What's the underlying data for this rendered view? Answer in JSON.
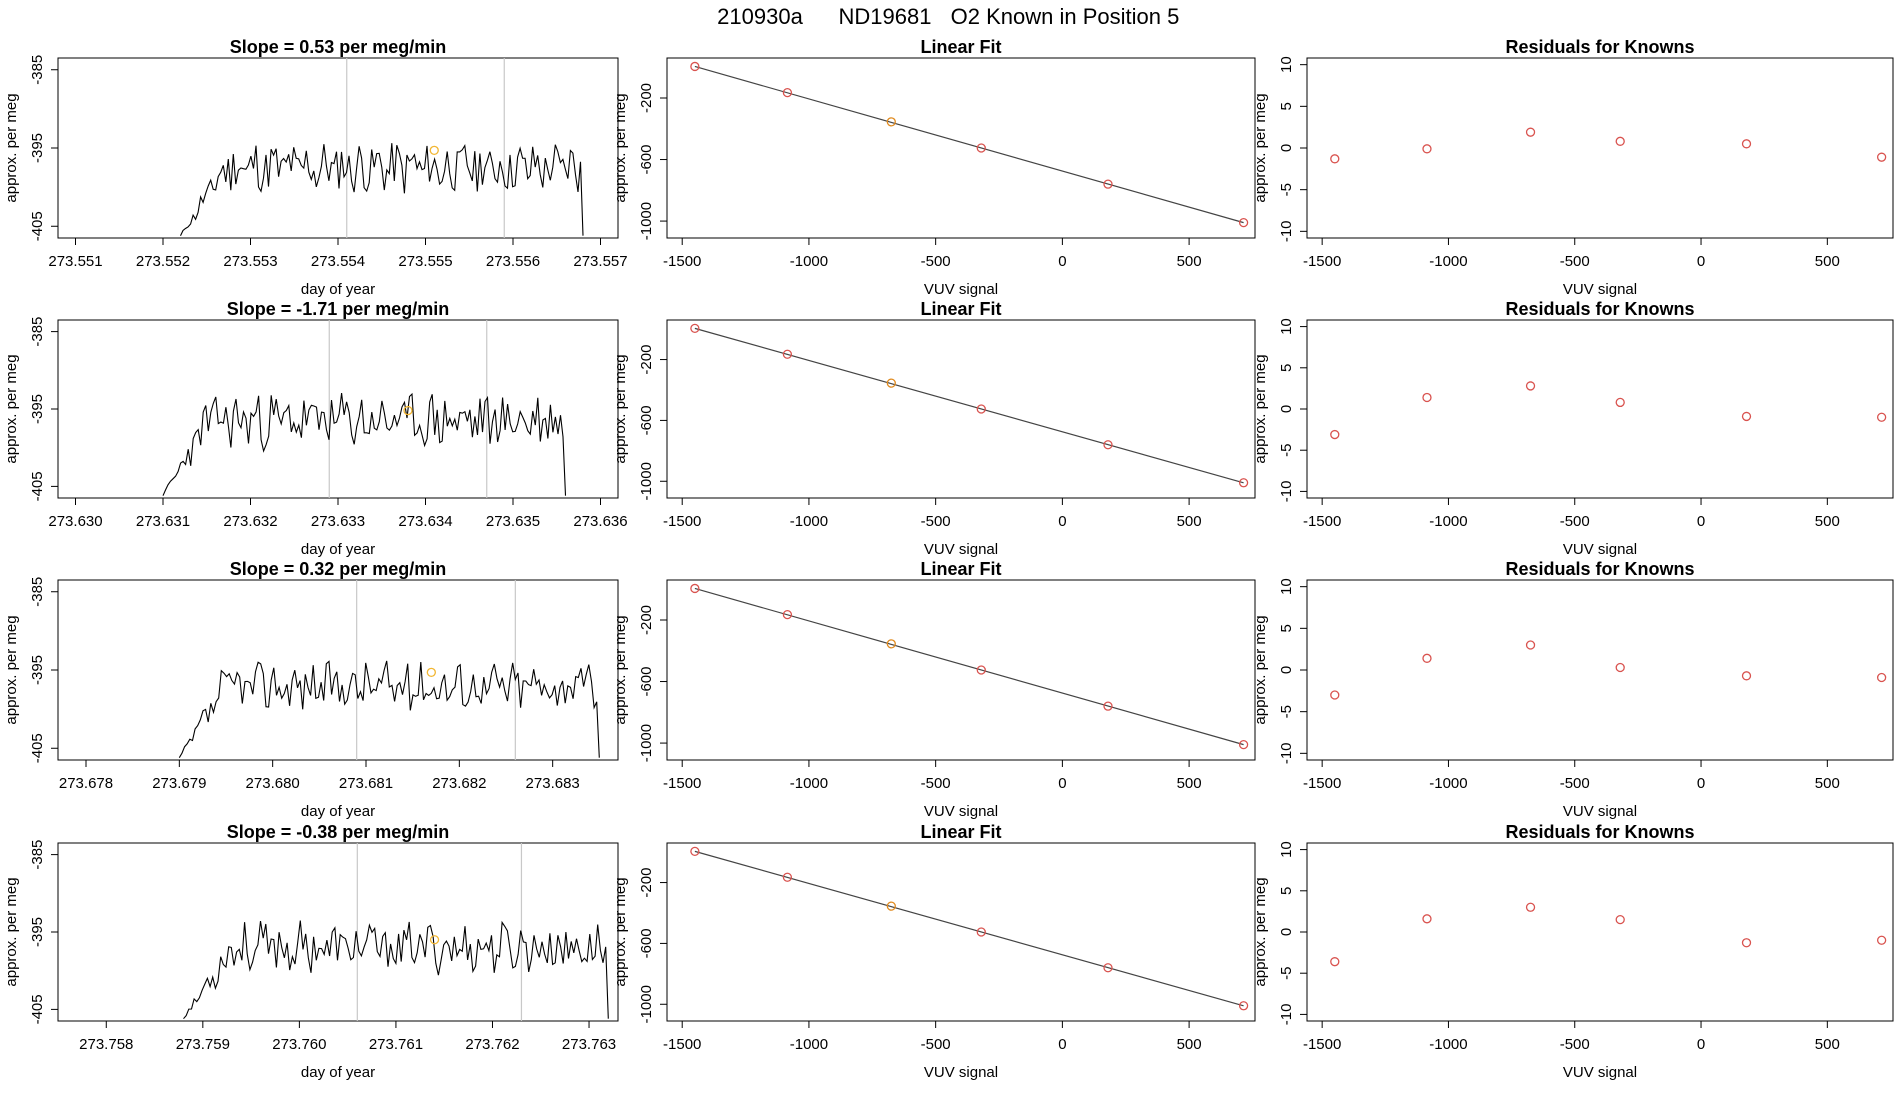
{
  "figure": {
    "run_id": "210930a",
    "tank_id": "ND19681",
    "description": "O2 Known in Position  5"
  },
  "chart_data": [
    {
      "type": "line",
      "title": "Slope =  0.53  per meg/min",
      "xlabel": "day of year",
      "ylabel": "approx. per meg",
      "xticks": [
        "273.551",
        "273.552",
        "273.553",
        "273.554",
        "273.555",
        "273.556",
        "273.557"
      ],
      "yticks": [
        "-385",
        "-395",
        "-405"
      ],
      "xlim": [
        273.5508,
        273.5572
      ],
      "ylim": [
        -406.5,
        -383.5
      ],
      "window": [
        273.5541,
        273.5559
      ],
      "marker": {
        "x": 273.5551,
        "y": -395.3
      },
      "series": [
        {
          "x_start": 273.5522,
          "x_end": 273.5568,
          "baseline": -397.5,
          "amp": 3.0,
          "seed": 11
        }
      ]
    },
    {
      "type": "scatter",
      "title": "Linear Fit",
      "xlabel": "VUV signal",
      "ylabel": "approx. per meg",
      "xticks": [
        "-1500",
        "-1000",
        "-500",
        "0",
        "500"
      ],
      "yticks": [
        "-200",
        "-600",
        "-1000"
      ],
      "xlim": [
        -1560,
        760
      ],
      "ylim": [
        -1110,
        60
      ],
      "points": {
        "x": [
          -1450,
          -1085,
          -675,
          -320,
          180,
          715
        ],
        "y": [
          5,
          -165,
          -355,
          -525,
          -760,
          -1010
        ]
      },
      "highlight_index": 2,
      "fit": {
        "x": [
          -1450,
          715
        ],
        "y": [
          5,
          -1010
        ]
      }
    },
    {
      "type": "scatter",
      "title": "Residuals for Knowns",
      "xlabel": "VUV signal",
      "ylabel": "approx. per meg",
      "xticks": [
        "-1500",
        "-1000",
        "-500",
        "0",
        "500"
      ],
      "yticks": [
        "10",
        "5",
        "0",
        "-5",
        "-10"
      ],
      "xlim": [
        -1560,
        760
      ],
      "ylim": [
        -10.8,
        10.8
      ],
      "points": {
        "x": [
          -1450,
          -1085,
          -675,
          -320,
          180,
          715
        ],
        "y": [
          -1.3,
          -0.1,
          1.9,
          0.8,
          0.5,
          -1.1
        ]
      }
    },
    {
      "type": "line",
      "title": "Slope =  -1.71  per meg/min",
      "xlabel": "day of year",
      "ylabel": "approx. per meg",
      "xticks": [
        "273.630",
        "273.631",
        "273.632",
        "273.633",
        "273.634",
        "273.635",
        "273.636"
      ],
      "yticks": [
        "-385",
        "-395",
        "-405"
      ],
      "xlim": [
        273.6298,
        273.6362
      ],
      "ylim": [
        -406.5,
        -383.5
      ],
      "window": [
        273.6329,
        273.6347
      ],
      "marker": {
        "x": 273.6338,
        "y": -395.2
      },
      "series": [
        {
          "x_start": 273.631,
          "x_end": 273.6356,
          "baseline": -396.5,
          "amp": 3.2,
          "seed": 23
        }
      ]
    },
    {
      "type": "scatter",
      "title": "Linear Fit",
      "xlabel": "VUV signal",
      "ylabel": "approx. per meg",
      "xticks": [
        "-1500",
        "-1000",
        "-500",
        "0",
        "500"
      ],
      "yticks": [
        "-200",
        "-600",
        "-1000"
      ],
      "xlim": [
        -1560,
        760
      ],
      "ylim": [
        -1110,
        60
      ],
      "points": {
        "x": [
          -1450,
          -1085,
          -675,
          -320,
          180,
          715
        ],
        "y": [
          5,
          -165,
          -355,
          -525,
          -760,
          -1010
        ]
      },
      "highlight_index": 2,
      "fit": {
        "x": [
          -1450,
          715
        ],
        "y": [
          5,
          -1010
        ]
      }
    },
    {
      "type": "scatter",
      "title": "Residuals for Knowns",
      "xlabel": "VUV signal",
      "ylabel": "approx. per meg",
      "xticks": [
        "-1500",
        "-1000",
        "-500",
        "0",
        "500"
      ],
      "yticks": [
        "10",
        "5",
        "0",
        "-5",
        "-10"
      ],
      "xlim": [
        -1560,
        760
      ],
      "ylim": [
        -10.8,
        10.8
      ],
      "points": {
        "x": [
          -1450,
          -1085,
          -675,
          -320,
          180,
          715
        ],
        "y": [
          -3.1,
          1.4,
          2.8,
          0.8,
          -0.9,
          -1.0
        ]
      }
    },
    {
      "type": "line",
      "title": "Slope =  0.32  per meg/min",
      "xlabel": "day of year",
      "ylabel": "approx. per meg",
      "xticks": [
        "273.678",
        "273.679",
        "273.680",
        "273.681",
        "273.682",
        "273.683"
      ],
      "yticks": [
        "-385",
        "-395",
        "-405"
      ],
      "xlim": [
        273.6777,
        273.6837
      ],
      "ylim": [
        -406.5,
        -383.5
      ],
      "window": [
        273.6809,
        273.6826
      ],
      "marker": {
        "x": 273.6817,
        "y": -395.3
      },
      "series": [
        {
          "x_start": 273.679,
          "x_end": 273.6835,
          "baseline": -397.0,
          "amp": 2.7,
          "seed": 37
        }
      ]
    },
    {
      "type": "scatter",
      "title": "Linear Fit",
      "xlabel": "VUV signal",
      "ylabel": "approx. per meg",
      "xticks": [
        "-1500",
        "-1000",
        "-500",
        "0",
        "500"
      ],
      "yticks": [
        "-200",
        "-600",
        "-1000"
      ],
      "xlim": [
        -1560,
        760
      ],
      "ylim": [
        -1110,
        60
      ],
      "points": {
        "x": [
          -1450,
          -1085,
          -675,
          -320,
          180,
          715
        ],
        "y": [
          5,
          -165,
          -355,
          -525,
          -760,
          -1010
        ]
      },
      "highlight_index": 2,
      "fit": {
        "x": [
          -1450,
          715
        ],
        "y": [
          5,
          -1010
        ]
      }
    },
    {
      "type": "scatter",
      "title": "Residuals for Knowns",
      "xlabel": "VUV signal",
      "ylabel": "approx. per meg",
      "xticks": [
        "-1500",
        "-1000",
        "-500",
        "0",
        "500"
      ],
      "yticks": [
        "10",
        "5",
        "0",
        "-5",
        "-10"
      ],
      "xlim": [
        -1560,
        760
      ],
      "ylim": [
        -10.8,
        10.8
      ],
      "points": {
        "x": [
          -1450,
          -1085,
          -675,
          -320,
          180,
          715
        ],
        "y": [
          -3.0,
          1.4,
          3.0,
          0.3,
          -0.7,
          -0.9
        ]
      }
    },
    {
      "type": "line",
      "title": "Slope =  -0.38  per meg/min",
      "xlabel": "day of year",
      "ylabel": "approx. per meg",
      "xticks": [
        "273.758",
        "273.759",
        "273.760",
        "273.761",
        "273.762",
        "273.763"
      ],
      "yticks": [
        "-385",
        "-395",
        "-405"
      ],
      "xlim": [
        273.7575,
        273.7633
      ],
      "ylim": [
        -406.5,
        -383.5
      ],
      "window": [
        273.7606,
        273.7623
      ],
      "marker": {
        "x": 273.7614,
        "y": -396.0
      },
      "series": [
        {
          "x_start": 273.7588,
          "x_end": 273.7632,
          "baseline": -397.0,
          "amp": 2.8,
          "seed": 53
        }
      ]
    },
    {
      "type": "scatter",
      "title": "Linear Fit",
      "xlabel": "VUV signal",
      "ylabel": "approx. per meg",
      "xticks": [
        "-1500",
        "-1000",
        "-500",
        "0",
        "500"
      ],
      "yticks": [
        "-200",
        "-600",
        "-1000"
      ],
      "xlim": [
        -1560,
        760
      ],
      "ylim": [
        -1110,
        60
      ],
      "points": {
        "x": [
          -1450,
          -1085,
          -675,
          -320,
          180,
          715
        ],
        "y": [
          5,
          -165,
          -355,
          -525,
          -760,
          -1010
        ]
      },
      "highlight_index": 2,
      "fit": {
        "x": [
          -1450,
          715
        ],
        "y": [
          5,
          -1010
        ]
      }
    },
    {
      "type": "scatter",
      "title": "Residuals for Knowns",
      "xlabel": "VUV signal",
      "ylabel": "approx. per meg",
      "xticks": [
        "-1500",
        "-1000",
        "-500",
        "0",
        "500"
      ],
      "yticks": [
        "10",
        "5",
        "0",
        "-5",
        "-10"
      ],
      "xlim": [
        -1560,
        760
      ],
      "ylim": [
        -10.8,
        10.8
      ],
      "points": {
        "x": [
          -1450,
          -1085,
          -675,
          -320,
          180,
          715
        ],
        "y": [
          -3.6,
          1.6,
          3.0,
          1.5,
          -1.3,
          -1.0
        ]
      }
    }
  ],
  "colors": {
    "line": "#000000",
    "marker": "#f2b632",
    "point": "#d9534f",
    "highlight": "#e08a1e",
    "window": "#c8c8c8",
    "fit": "#444444"
  }
}
